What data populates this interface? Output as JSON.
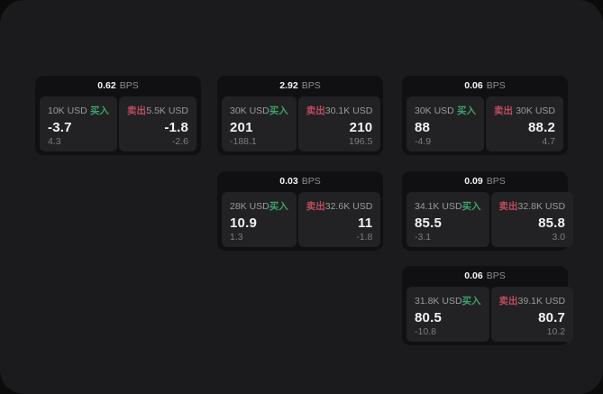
{
  "colors": {
    "page_bg": "#0B0B0C",
    "panel_bg": "#1B1B1D",
    "group_bg": "#101012",
    "sub_bg": "#222224",
    "buy_green": "#3FA06A",
    "sell_red": "#BD4B60",
    "label_gray": "#9A9A9A",
    "small_gray": "#7D7D7D",
    "bps_gray": "#8C8C8C",
    "value_white": "#F2F2F2"
  },
  "labels": {
    "bps": "BPS",
    "buy": "买入",
    "sell": "卖出"
  },
  "cards": [
    {
      "bps": "0.62",
      "buy": {
        "amount": "10K USD",
        "value": "-3.7",
        "delta": "4.3"
      },
      "sell": {
        "amount": "5.5K USD",
        "value": "-1.8",
        "delta": "-2.6"
      }
    },
    {
      "bps": "2.92",
      "buy": {
        "amount": "30K USD",
        "value": "201",
        "delta": "-188.1"
      },
      "sell": {
        "amount": "30.1K USD",
        "value": "210",
        "delta": "196.5"
      }
    },
    {
      "bps": "0.06",
      "buy": {
        "amount": "30K USD",
        "value": "88",
        "delta": "-4.9"
      },
      "sell": {
        "amount": "30K USD",
        "value": "88.2",
        "delta": "4.7"
      }
    },
    {
      "bps": "0.03",
      "buy": {
        "amount": "28K USD",
        "value": "10.9",
        "delta": "1.3"
      },
      "sell": {
        "amount": "32.6K USD",
        "value": "11",
        "delta": "-1.8"
      }
    },
    {
      "bps": "0.09",
      "buy": {
        "amount": "34.1K USD",
        "value": "85.5",
        "delta": "-3.1"
      },
      "sell": {
        "amount": "32.8K USD",
        "value": "85.8",
        "delta": "3.0"
      }
    },
    {
      "bps": "0.06",
      "buy": {
        "amount": "31.8K USD",
        "value": "80.5",
        "delta": "-10.8"
      },
      "sell": {
        "amount": "39.1K USD",
        "value": "80.7",
        "delta": "10.2"
      }
    }
  ]
}
